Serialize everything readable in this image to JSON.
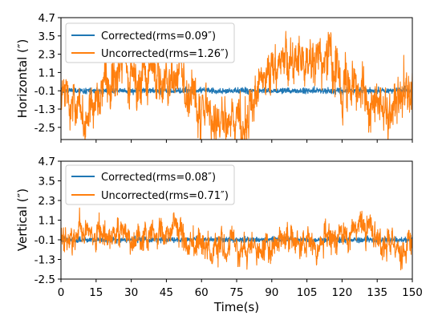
{
  "xlabel": "Time(s)",
  "x_ticks": [
    0,
    15,
    30,
    45,
    60,
    75,
    90,
    105,
    120,
    135,
    150
  ],
  "chart_data": [
    {
      "type": "line",
      "ylabel": "Horizontal (″)",
      "xlim": [
        0,
        150
      ],
      "ylim": [
        -3.3,
        4.7
      ],
      "y_ticks": [
        4.7,
        3.5,
        2.3,
        1.1,
        -0.1,
        -1.3,
        -2.5
      ],
      "legend_position": "upper-left",
      "grid": false,
      "series": [
        {
          "name": "Corrected(rms=0.09″)",
          "color": "#1f77b4",
          "rms": 0.09,
          "anchors_t": [
            0,
            150
          ],
          "anchors_v": [
            -0.1,
            -0.1
          ]
        },
        {
          "name": "Uncorrected(rms=1.26″)",
          "color": "#ff7f0e",
          "rms": 1.26,
          "anchors_t": [
            0,
            5,
            10,
            15,
            20,
            25,
            30,
            35,
            40,
            45,
            50,
            55,
            60,
            65,
            70,
            75,
            80,
            85,
            90,
            95,
            100,
            105,
            110,
            115,
            120,
            125,
            130,
            135,
            140,
            145,
            150
          ],
          "anchors_v": [
            -0.3,
            -0.6,
            -1.8,
            -0.8,
            -0.2,
            0.5,
            0.8,
            1.0,
            0.5,
            0.9,
            0.3,
            -0.5,
            -1.5,
            -2.0,
            -2.2,
            -2.4,
            -1.8,
            -0.2,
            1.3,
            2.3,
            1.8,
            1.6,
            1.8,
            1.3,
            0.6,
            0.1,
            -0.2,
            -0.8,
            -1.2,
            -0.4,
            0.6
          ]
        }
      ]
    },
    {
      "type": "line",
      "ylabel": "Vertical (″)",
      "xlim": [
        0,
        150
      ],
      "ylim": [
        -2.5,
        4.7
      ],
      "y_ticks": [
        4.7,
        3.5,
        2.3,
        1.1,
        -0.1,
        -1.3,
        -2.5
      ],
      "legend_position": "upper-left",
      "grid": false,
      "series": [
        {
          "name": "Corrected(rms=0.08″)",
          "color": "#1f77b4",
          "rms": 0.08,
          "anchors_t": [
            0,
            150
          ],
          "anchors_v": [
            -0.1,
            -0.1
          ]
        },
        {
          "name": "Uncorrected(rms=0.71″)",
          "color": "#ff7f0e",
          "rms": 0.71,
          "anchors_t": [
            0,
            10,
            20,
            30,
            40,
            50,
            60,
            70,
            80,
            90,
            100,
            110,
            120,
            130,
            140,
            150
          ],
          "anchors_v": [
            0.3,
            0.4,
            0.2,
            0.0,
            0.3,
            0.0,
            -0.4,
            -0.6,
            -0.5,
            -0.4,
            -0.3,
            -0.1,
            0.1,
            0.6,
            -0.5,
            -0.3
          ]
        }
      ]
    }
  ]
}
